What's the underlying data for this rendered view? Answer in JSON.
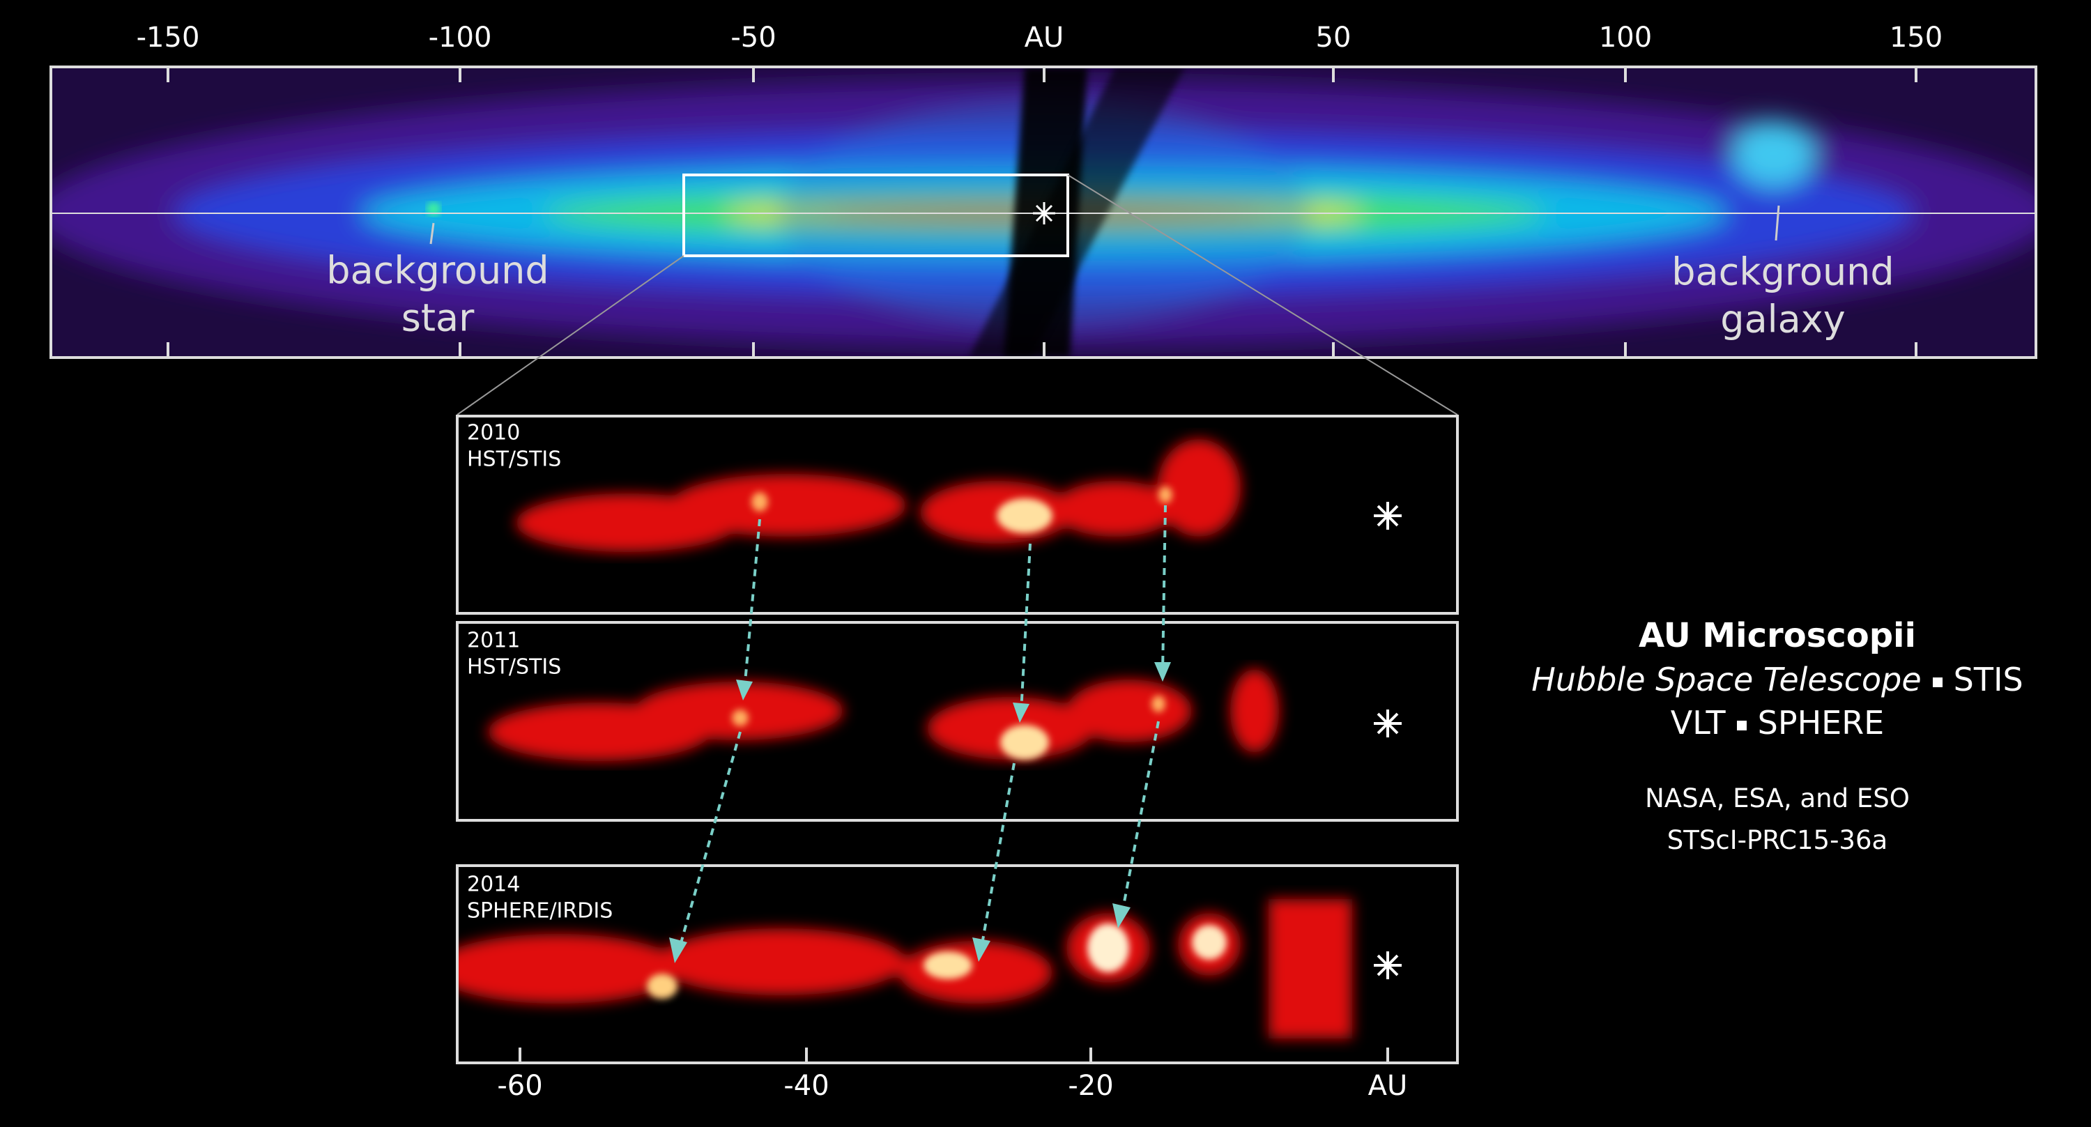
{
  "top_axis": {
    "ticks": [
      "-150",
      "-100",
      "-50",
      "AU",
      "50",
      "100",
      "150"
    ]
  },
  "annotations": [
    {
      "lines": [
        "background",
        "star"
      ]
    },
    {
      "lines": [
        "background",
        "galaxy"
      ]
    }
  ],
  "panels": [
    {
      "lines": [
        "2010",
        "HST/STIS"
      ]
    },
    {
      "lines": [
        "2011",
        "HST/STIS"
      ]
    },
    {
      "lines": [
        "2014",
        "SPHERE/IRDIS"
      ]
    }
  ],
  "bottom_axis": {
    "ticks": [
      "-60",
      "-40",
      "-20",
      "AU"
    ]
  },
  "caption": {
    "title": "AU Microscopii",
    "instruments": [
      [
        "Hubble Space Telescope",
        "STIS"
      ],
      [
        "VLT",
        "SPHERE"
      ]
    ],
    "credits": [
      "NASA, ESA, and ESO",
      "STScI-PRC15-36a"
    ]
  }
}
